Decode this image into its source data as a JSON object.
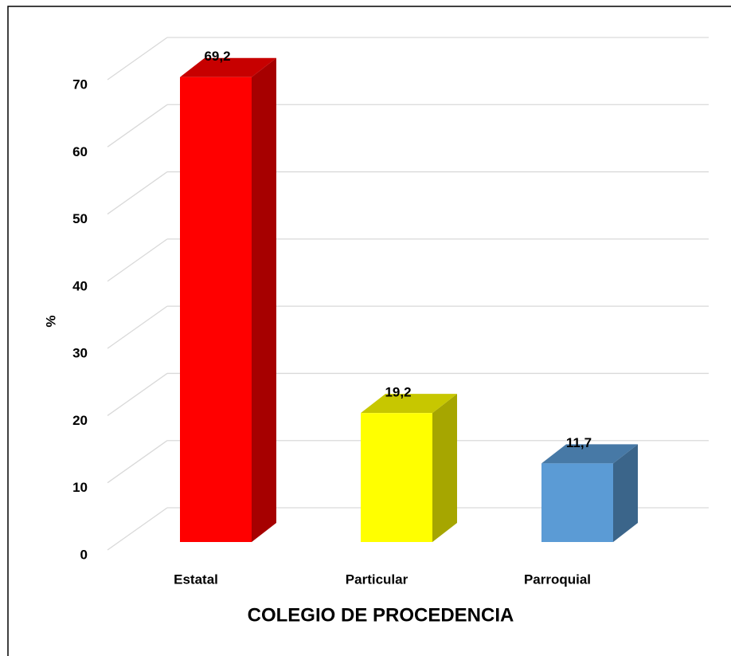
{
  "chart_data": {
    "type": "bar3d",
    "categories": [
      "Estatal",
      "Particular",
      "Parroquial"
    ],
    "values": [
      69.2,
      19.2,
      11.7
    ],
    "value_labels": [
      "69,2",
      "19,2",
      "11,7"
    ],
    "colors": [
      "#ff0000",
      "#ffff00",
      "#5b9bd5"
    ],
    "ylim": [
      0,
      70
    ],
    "yticks": [
      0,
      10,
      20,
      30,
      40,
      50,
      60,
      70
    ],
    "ylabel": "%",
    "xlabel": "COLEGIO DE PROCEDENCIA",
    "grid": true
  }
}
